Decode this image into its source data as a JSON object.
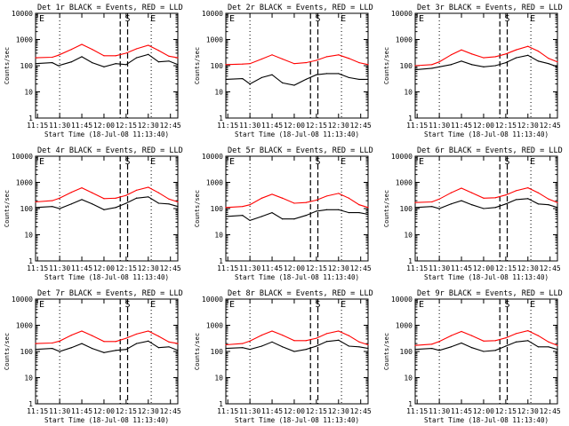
{
  "figure": {
    "panel_titles": [
      "Det 1r BLACK = Events, RED = LLD",
      "Det 2r BLACK = Events, RED = LLD",
      "Det 3r BLACK = Events, RED = LLD",
      "Det 4r BLACK = Events, RED = LLD",
      "Det 5r BLACK = Events, RED = LLD",
      "Det 6r BLACK = Events, RED = LLD",
      "Det 7r BLACK = Events, RED = LLD",
      "Det 8r BLACK = Events, RED = LLD",
      "Det 9r BLACK = Events, RED = LLD"
    ],
    "ylabel": "Counts/sec",
    "xlabel": "Start Time (18-Jul-08 11:13:40)",
    "xtick_labels": [
      "11:15",
      "11:30",
      "11:45",
      "12:00",
      "12:15",
      "12:30",
      "12:45"
    ],
    "ytick_labels": [
      "1",
      "10",
      "100",
      "1000",
      "10000"
    ],
    "markers": {
      "start": "S",
      "end": "E"
    },
    "colors": {
      "events": "#000000",
      "lld": "#ff0000"
    }
  },
  "chart_data": {
    "type": "line",
    "layout": "3x3 grid",
    "ylog": true,
    "ylim": [
      1,
      10000
    ],
    "xlim": [
      "11:13:40",
      "12:50"
    ],
    "vertical_lines": [
      {
        "time": "11:13:40",
        "style": "dotted"
      },
      {
        "time": "11:30",
        "style": "dotted"
      },
      {
        "time": "12:11",
        "style": "dashed"
      },
      {
        "time": "12:16",
        "style": "dashed",
        "label": "S"
      },
      {
        "time": "12:32",
        "style": "dotted",
        "label": "E"
      }
    ],
    "series_names": [
      "Events",
      "LLD"
    ],
    "panels": [
      {
        "detector": "1r",
        "time": [
          "11:13:40",
          "11:25",
          "11:29",
          "11:38",
          "11:45",
          "11:52",
          "12:00",
          "12:08",
          "12:15",
          "12:22",
          "12:30",
          "12:37",
          "12:44",
          "12:50"
        ],
        "lld": [
          200,
          210,
          250,
          420,
          650,
          420,
          240,
          240,
          300,
          440,
          600,
          380,
          230,
          200
        ],
        "events": [
          120,
          130,
          100,
          140,
          220,
          130,
          90,
          120,
          110,
          200,
          270,
          140,
          150,
          110
        ]
      },
      {
        "detector": "2r",
        "time": [
          "11:13:40",
          "11:25",
          "11:30",
          "11:38",
          "11:45",
          "11:52",
          "12:00",
          "12:08",
          "12:15",
          "12:22",
          "12:30",
          "12:37",
          "12:44",
          "12:50"
        ],
        "lld": [
          110,
          115,
          120,
          180,
          260,
          180,
          120,
          130,
          160,
          220,
          260,
          190,
          130,
          110
        ],
        "events": [
          30,
          32,
          20,
          35,
          45,
          22,
          18,
          30,
          45,
          50,
          50,
          35,
          30,
          30
        ]
      },
      {
        "detector": "3r",
        "time": [
          "11:13:40",
          "11:25",
          "11:30",
          "11:38",
          "11:45",
          "11:52",
          "12:00",
          "12:08",
          "12:15",
          "12:22",
          "12:30",
          "12:37",
          "12:44",
          "12:50"
        ],
        "lld": [
          100,
          110,
          140,
          260,
          400,
          280,
          200,
          220,
          280,
          400,
          550,
          360,
          190,
          140
        ],
        "events": [
          70,
          80,
          90,
          110,
          150,
          110,
          90,
          100,
          130,
          200,
          250,
          150,
          120,
          90
        ]
      },
      {
        "detector": "4r",
        "time": [
          "11:13:40",
          "11:25",
          "11:30",
          "11:38",
          "11:45",
          "11:52",
          "12:00",
          "12:08",
          "12:15",
          "12:22",
          "12:30",
          "12:37",
          "12:44",
          "12:50"
        ],
        "lld": [
          180,
          200,
          250,
          420,
          620,
          400,
          240,
          250,
          320,
          500,
          650,
          400,
          230,
          180
        ],
        "events": [
          110,
          120,
          100,
          150,
          220,
          150,
          90,
          110,
          160,
          250,
          280,
          160,
          150,
          120
        ]
      },
      {
        "detector": "5r",
        "time": [
          "11:13:40",
          "11:25",
          "11:30",
          "11:38",
          "11:45",
          "11:52",
          "12:00",
          "12:08",
          "12:15",
          "12:22",
          "12:30",
          "12:37",
          "12:44",
          "12:50"
        ],
        "lld": [
          110,
          120,
          140,
          250,
          350,
          250,
          160,
          170,
          210,
          300,
          380,
          250,
          140,
          110
        ],
        "events": [
          50,
          55,
          35,
          50,
          70,
          40,
          40,
          55,
          80,
          90,
          90,
          70,
          70,
          60
        ]
      },
      {
        "detector": "6r",
        "time": [
          "11:13:40",
          "11:25",
          "11:30",
          "11:38",
          "11:45",
          "11:52",
          "12:00",
          "12:08",
          "12:15",
          "12:22",
          "12:30",
          "12:37",
          "12:44",
          "12:50"
        ],
        "lld": [
          170,
          180,
          230,
          400,
          600,
          400,
          250,
          260,
          330,
          480,
          620,
          400,
          230,
          170
        ],
        "events": [
          110,
          120,
          100,
          150,
          200,
          140,
          100,
          110,
          150,
          220,
          240,
          150,
          140,
          110
        ]
      },
      {
        "detector": "7r",
        "time": [
          "11:13:40",
          "11:25",
          "11:30",
          "11:38",
          "11:45",
          "11:52",
          "12:00",
          "12:08",
          "12:15",
          "12:22",
          "12:30",
          "12:37",
          "12:44",
          "12:50"
        ],
        "lld": [
          200,
          210,
          250,
          420,
          600,
          400,
          240,
          240,
          320,
          460,
          600,
          380,
          230,
          200
        ],
        "events": [
          120,
          130,
          100,
          140,
          200,
          130,
          90,
          110,
          120,
          200,
          250,
          140,
          150,
          110
        ]
      },
      {
        "detector": "8r",
        "time": [
          "11:13:40",
          "11:25",
          "11:30",
          "11:38",
          "11:45",
          "11:52",
          "12:00",
          "12:08",
          "12:15",
          "12:22",
          "12:30",
          "12:37",
          "12:44",
          "12:50"
        ],
        "lld": [
          180,
          200,
          250,
          420,
          600,
          420,
          260,
          260,
          320,
          480,
          600,
          400,
          230,
          180
        ],
        "events": [
          130,
          140,
          120,
          160,
          230,
          150,
          100,
          120,
          160,
          240,
          270,
          160,
          150,
          130
        ]
      },
      {
        "detector": "9r",
        "time": [
          "11:13:40",
          "11:25",
          "11:30",
          "11:38",
          "11:45",
          "11:52",
          "12:00",
          "12:08",
          "12:15",
          "12:22",
          "12:30",
          "12:37",
          "12:44",
          "12:50"
        ],
        "lld": [
          170,
          190,
          240,
          400,
          580,
          400,
          250,
          260,
          330,
          480,
          620,
          400,
          230,
          170
        ],
        "events": [
          120,
          130,
          110,
          150,
          210,
          140,
          100,
          110,
          160,
          230,
          260,
          150,
          150,
          120
        ]
      }
    ]
  }
}
